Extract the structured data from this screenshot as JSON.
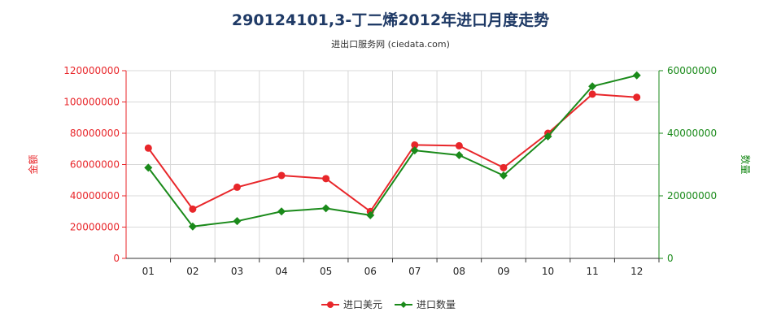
{
  "chart_data": {
    "type": "line",
    "title": "290124101,3-丁二烯2012年进口月度走势",
    "subtitle": "进出口服务网 (ciedata.com)",
    "categories": [
      "01",
      "02",
      "03",
      "04",
      "05",
      "06",
      "07",
      "08",
      "09",
      "10",
      "11",
      "12"
    ],
    "left_axis": {
      "label": "金额",
      "ticks": [
        "0",
        "20000000",
        "40000000",
        "60000000",
        "80000000",
        "100000000",
        "120000000"
      ],
      "ylim": [
        0,
        120000000
      ],
      "color": "#e8262a"
    },
    "right_axis": {
      "label": "数量",
      "ticks": [
        "0",
        "20000000",
        "40000000",
        "60000000"
      ],
      "ylim": [
        0,
        60000000
      ],
      "color": "#1a8a1a"
    },
    "series": [
      {
        "name": "进口美元",
        "axis": "left",
        "color": "#e8262a",
        "values": [
          70500000,
          31500000,
          45500000,
          53000000,
          51000000,
          30000000,
          72500000,
          72000000,
          58000000,
          80000000,
          105000000,
          103000000
        ]
      },
      {
        "name": "进口数量",
        "axis": "right",
        "color": "#1a8a1a",
        "values": [
          29000000,
          10200000,
          11900000,
          15000000,
          16000000,
          13800000,
          34500000,
          33000000,
          26500000,
          39000000,
          55000000,
          58500000
        ]
      }
    ],
    "grid": true,
    "legend_position": "bottom-center"
  }
}
